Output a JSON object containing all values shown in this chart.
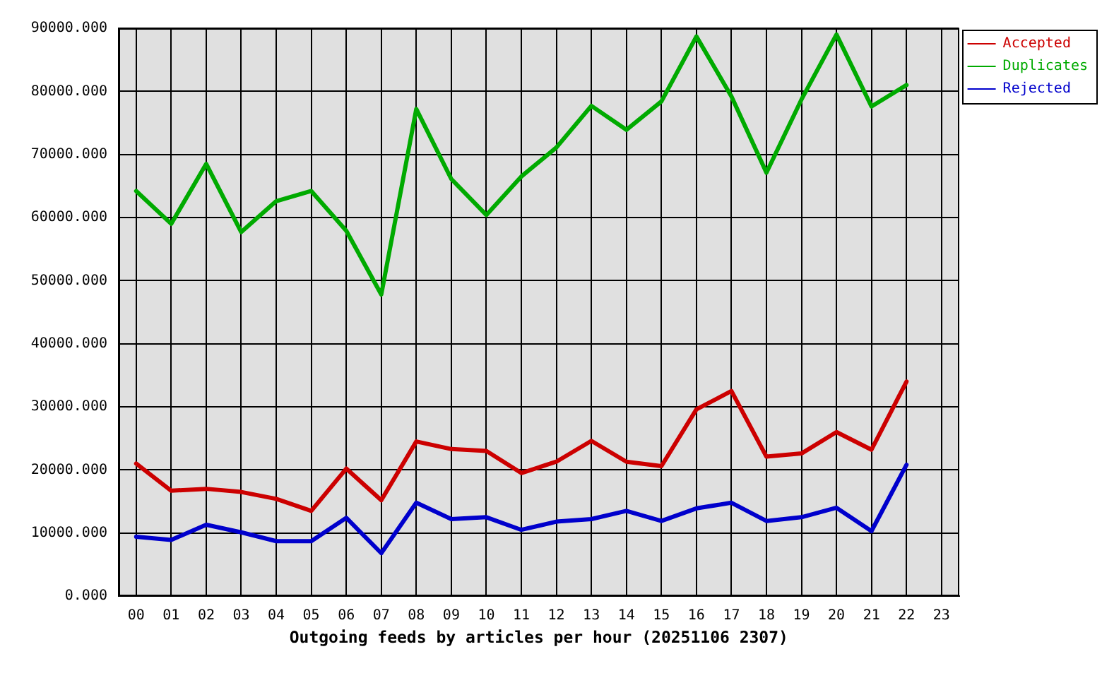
{
  "chart_data": {
    "type": "line",
    "xlabel": "Outgoing feeds by articles per hour (20251106 2307)",
    "categories": [
      "00",
      "01",
      "02",
      "03",
      "04",
      "05",
      "06",
      "07",
      "08",
      "09",
      "10",
      "11",
      "12",
      "13",
      "14",
      "15",
      "16",
      "17",
      "18",
      "19",
      "20",
      "21",
      "22",
      "23"
    ],
    "series": [
      {
        "name": "Accepted",
        "color": "#cc0000",
        "values": [
          21000,
          16700,
          17000,
          16500,
          15400,
          13500,
          20200,
          15200,
          24500,
          23300,
          23000,
          19500,
          21300,
          24600,
          21300,
          20600,
          29600,
          32500,
          22100,
          22600,
          26000,
          23200,
          34000,
          null
        ]
      },
      {
        "name": "Duplicates",
        "color": "#00aa00",
        "values": [
          64200,
          59000,
          68500,
          57700,
          62600,
          64200,
          57900,
          47800,
          77200,
          66100,
          60400,
          66500,
          71100,
          77700,
          73900,
          78400,
          88700,
          79200,
          67100,
          78700,
          89000,
          77600,
          81000,
          null
        ]
      },
      {
        "name": "Rejected",
        "color": "#0000cc",
        "values": [
          9400,
          8900,
          11300,
          10100,
          8700,
          8700,
          12400,
          6800,
          14800,
          12200,
          12500,
          10500,
          11800,
          12200,
          13500,
          11900,
          13900,
          14800,
          11900,
          12500,
          14000,
          10300,
          20800,
          null
        ]
      }
    ],
    "ylim": [
      0,
      90000
    ],
    "yticks": [
      {
        "value": 0,
        "label": "0.000"
      },
      {
        "value": 10000,
        "label": "10000.000"
      },
      {
        "value": 20000,
        "label": "20000.000"
      },
      {
        "value": 30000,
        "label": "30000.000"
      },
      {
        "value": 40000,
        "label": "40000.000"
      },
      {
        "value": 50000,
        "label": "50000.000"
      },
      {
        "value": 60000,
        "label": "60000.000"
      },
      {
        "value": 70000,
        "label": "70000.000"
      },
      {
        "value": 80000,
        "label": "80000.000"
      },
      {
        "value": 90000,
        "label": "90000.000"
      }
    ],
    "grid": true,
    "legend": "top right"
  }
}
